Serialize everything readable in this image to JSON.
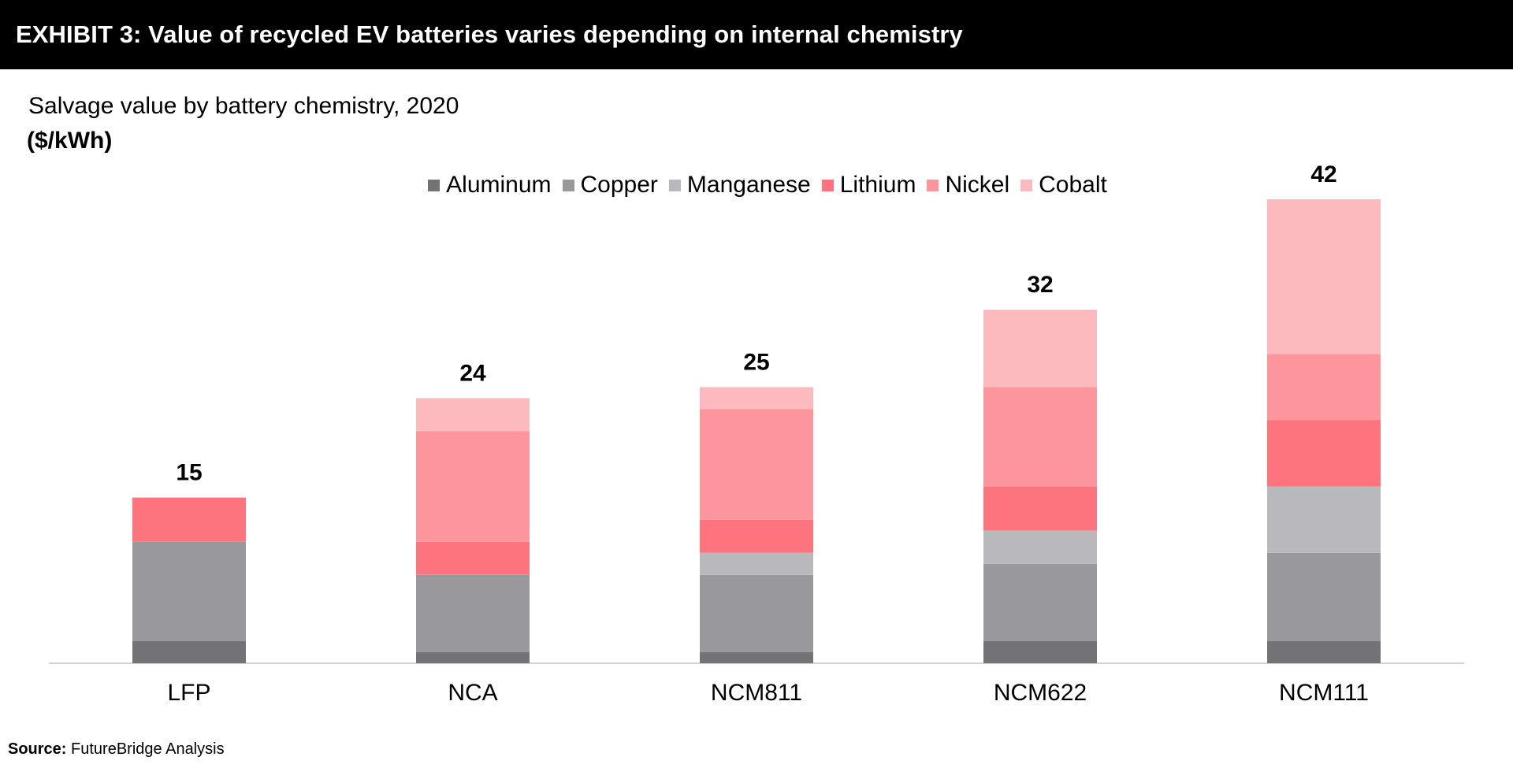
{
  "header": {
    "title": "EXHIBIT 3: Value of recycled EV batteries varies depending on internal chemistry"
  },
  "source": {
    "label": "Source:",
    "text": "FutureBridge Analysis"
  },
  "chart_data": {
    "type": "bar",
    "stacked": true,
    "title": "Salvage value by battery chemistry, 2020",
    "ylabel": "($/kWh)",
    "xlabel": "",
    "legend_position": "top-center",
    "grid": false,
    "ylim": [
      0,
      42
    ],
    "categories": [
      "LFP",
      "NCA",
      "NCM811",
      "NCM622",
      "NCM111"
    ],
    "totals": [
      15,
      24,
      25,
      32,
      42
    ],
    "series": [
      {
        "name": "Aluminum",
        "color": "#737377",
        "values": [
          2,
          1,
          1,
          2,
          2
        ]
      },
      {
        "name": "Copper",
        "color": "#98989d",
        "values": [
          9,
          7,
          7,
          7,
          8
        ]
      },
      {
        "name": "Manganese",
        "color": "#b9b9bd",
        "values": [
          0,
          0,
          2,
          3,
          6
        ]
      },
      {
        "name": "Lithium",
        "color": "#fd737e",
        "values": [
          4,
          3,
          3,
          4,
          6
        ]
      },
      {
        "name": "Nickel",
        "color": "#fc969c",
        "values": [
          0,
          10,
          10,
          9,
          6
        ]
      },
      {
        "name": "Cobalt",
        "color": "#fdbabe",
        "values": [
          0,
          3,
          2,
          7,
          14
        ]
      }
    ]
  }
}
